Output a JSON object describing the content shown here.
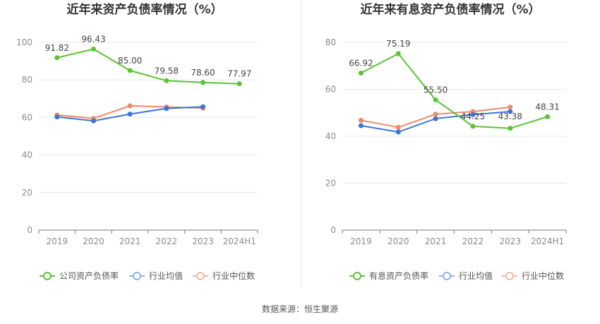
{
  "colors": {
    "green": "#5ac434",
    "blue": "#3f74d8",
    "orange": "#f08a6a",
    "legend_blue": "#8fb2ee",
    "legend_orange": "#f6b8a2",
    "grid": "#e6e6e6",
    "axis": "#7a7a7a"
  },
  "source_text": "数据来源：恒生聚源",
  "chart_data": [
    {
      "type": "line",
      "title": "近年来资产负债率情况（%）",
      "categories": [
        "2019",
        "2020",
        "2021",
        "2022",
        "2023",
        "2024H1"
      ],
      "ylim": [
        0,
        100
      ],
      "yticks": [
        "0",
        "20",
        "40",
        "60",
        "80",
        "100"
      ],
      "ytick_values": [
        0,
        20,
        40,
        60,
        80,
        100
      ],
      "grid": true,
      "legend_position": "bottom",
      "series": [
        {
          "name": "公司资产负债率",
          "color_key": "green",
          "values": [
            91.82,
            96.43,
            85.0,
            79.58,
            78.6,
            77.97
          ],
          "labels": [
            "91.82",
            "96.43",
            "85.00",
            "79.58",
            "78.60",
            "77.97"
          ]
        },
        {
          "name": "行业均值",
          "color_key": "blue",
          "values": [
            60.3,
            58.2,
            61.8,
            64.8,
            65.7,
            null
          ],
          "labels": []
        },
        {
          "name": "行业中位数",
          "color_key": "orange",
          "values": [
            61.3,
            59.5,
            66.2,
            65.6,
            65.0,
            null
          ],
          "labels": []
        }
      ]
    },
    {
      "type": "line",
      "title": "近年来有息资产负债率情况（%）",
      "categories": [
        "2019",
        "2020",
        "2021",
        "2022",
        "2023",
        "2024H1"
      ],
      "ylim": [
        0,
        80
      ],
      "yticks": [
        "0",
        "20",
        "40",
        "60",
        "80"
      ],
      "ytick_values": [
        0,
        20,
        40,
        60,
        80
      ],
      "grid": true,
      "legend_position": "bottom",
      "series": [
        {
          "name": "有息资产负债率",
          "color_key": "green",
          "values": [
            66.92,
            75.19,
            55.5,
            44.25,
            43.38,
            48.31
          ],
          "labels": [
            "66.92",
            "75.19",
            "55.50",
            "44.25",
            "43.38",
            "48.31"
          ]
        },
        {
          "name": "行业均值",
          "color_key": "blue",
          "values": [
            44.5,
            41.8,
            47.5,
            49.2,
            50.5,
            null
          ],
          "labels": []
        },
        {
          "name": "行业中位数",
          "color_key": "orange",
          "values": [
            46.8,
            43.8,
            49.4,
            50.5,
            52.4,
            null
          ],
          "labels": []
        }
      ]
    }
  ]
}
